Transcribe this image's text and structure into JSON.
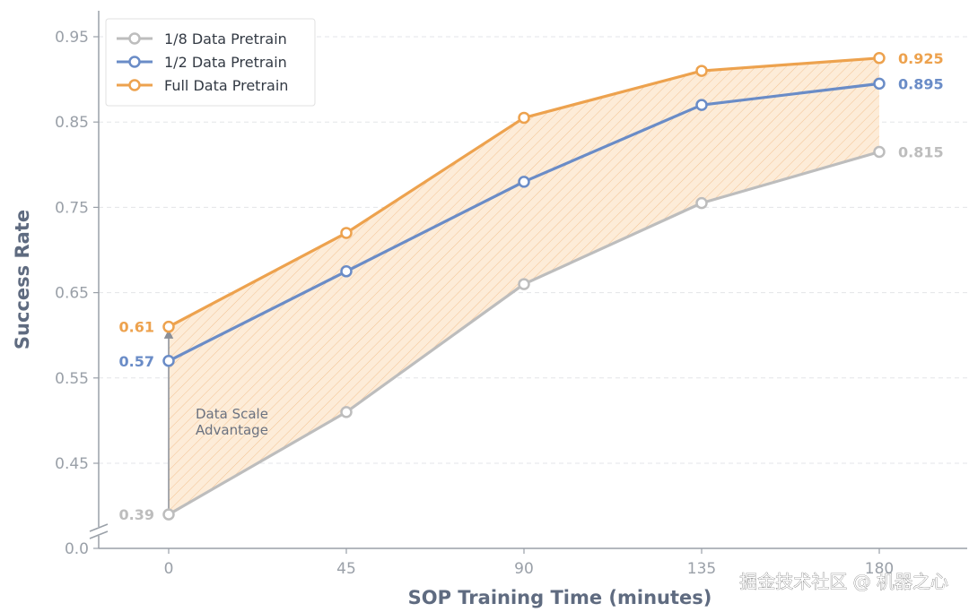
{
  "chart_data": {
    "type": "line",
    "title": "",
    "xlabel": "SOP Training Time (minutes)",
    "ylabel": "Success Rate",
    "x": [
      0,
      45,
      90,
      135,
      180
    ],
    "xlim": [
      -17,
      202
    ],
    "ylim": [
      0.0,
      0.95
    ],
    "y_ticks": [
      0.0,
      0.45,
      0.55,
      0.65,
      0.75,
      0.85,
      0.95
    ],
    "y_tick_labels": [
      "0.0",
      "0.45",
      "0.55",
      "0.65",
      "0.75",
      "0.85",
      "0.95"
    ],
    "y_axis_break": true,
    "grid": "horizontal-dashed",
    "legend_position": "top-left",
    "series": [
      {
        "name": "1/8 Data Pretrain",
        "values": [
          0.39,
          0.51,
          0.66,
          0.755,
          0.815
        ],
        "color": "#bdbdbd",
        "start_label": "0.39",
        "end_label": "0.815"
      },
      {
        "name": "1/2 Data Pretrain",
        "values": [
          0.57,
          0.675,
          0.78,
          0.87,
          0.895
        ],
        "color": "#6a8cc7",
        "start_label": "0.57",
        "end_label": "0.895"
      },
      {
        "name": "Full Data Pretrain",
        "values": [
          0.61,
          0.72,
          0.855,
          0.91,
          0.925
        ],
        "color": "#eda24e",
        "start_label": "0.61",
        "end_label": "0.925"
      }
    ],
    "shaded_region": {
      "between": [
        "1/8 Data Pretrain",
        "Full Data Pretrain"
      ],
      "color": "#fde9d2",
      "hatch": true
    },
    "annotation": {
      "text_lines": [
        "Data Scale",
        "Advantage"
      ]
    }
  },
  "watermark": "掘金技术社区 @ 机器之心"
}
